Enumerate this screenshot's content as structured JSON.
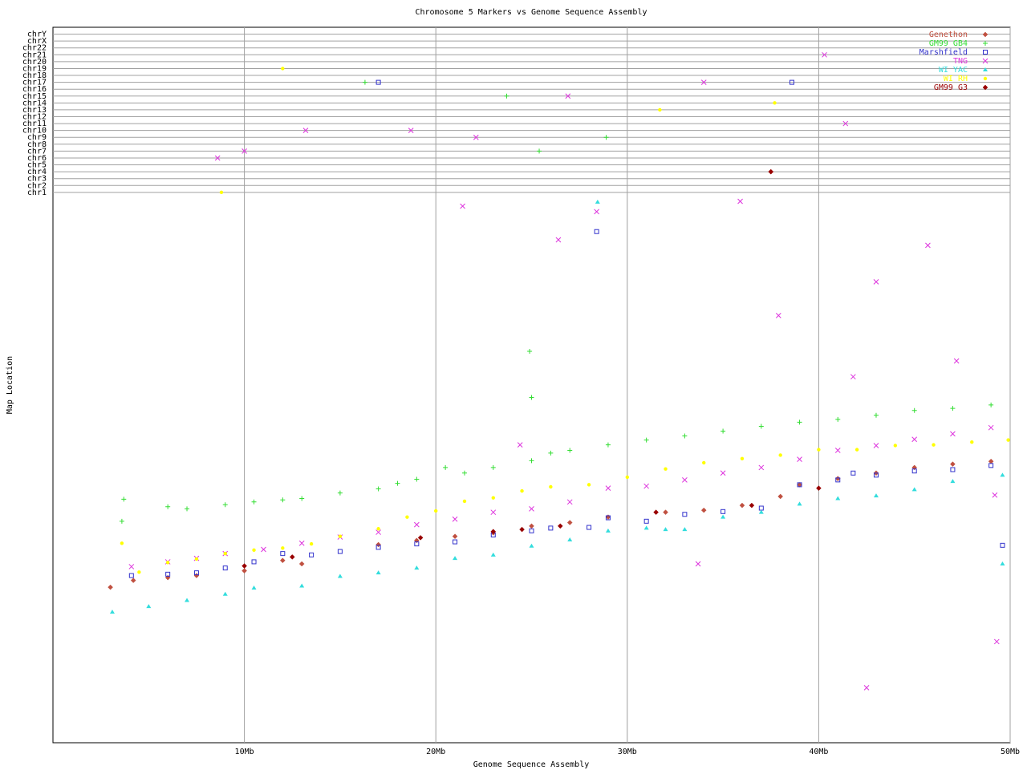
{
  "chart_data": {
    "type": "scatter",
    "title": "Chromosome 5 Markers vs Genome Sequence Assembly",
    "x_label": "Genome Sequence Assembly",
    "y_label": "Map Location",
    "xlim": [
      0,
      50
    ],
    "ylim": [
      0,
      104
    ],
    "xticks": [
      {
        "value": 10,
        "label": "10Mb"
      },
      {
        "value": 20,
        "label": "20Mb"
      },
      {
        "value": 30,
        "label": "30Mb"
      },
      {
        "value": 40,
        "label": "40Mb"
      },
      {
        "value": 50,
        "label": "50Mb"
      }
    ],
    "yticks": [
      {
        "value": 80,
        "label": "chr1"
      },
      {
        "value": 81,
        "label": "chr2"
      },
      {
        "value": 82,
        "label": "chr3"
      },
      {
        "value": 83,
        "label": "chr4"
      },
      {
        "value": 84,
        "label": "chr5"
      },
      {
        "value": 85,
        "label": "chr6"
      },
      {
        "value": 86,
        "label": "chr7"
      },
      {
        "value": 87,
        "label": "chr8"
      },
      {
        "value": 88,
        "label": "chr9"
      },
      {
        "value": 89,
        "label": "chr10"
      },
      {
        "value": 90,
        "label": "chr11"
      },
      {
        "value": 91,
        "label": "chr12"
      },
      {
        "value": 92,
        "label": "chr13"
      },
      {
        "value": 93,
        "label": "chr14"
      },
      {
        "value": 94,
        "label": "chr15"
      },
      {
        "value": 95,
        "label": "chr16"
      },
      {
        "value": 96,
        "label": "chr17"
      },
      {
        "value": 97,
        "label": "chr18"
      },
      {
        "value": 98,
        "label": "chr19"
      },
      {
        "value": 99,
        "label": "chr20"
      },
      {
        "value": 100,
        "label": "chr21"
      },
      {
        "value": 101,
        "label": "chr22"
      },
      {
        "value": 102,
        "label": "chrX"
      },
      {
        "value": 103,
        "label": "chrY"
      }
    ],
    "grid": true,
    "legend": "top-right",
    "series": [
      {
        "name": "Genethon",
        "color": "#c05040",
        "marker": "diamond",
        "x": [
          3.0,
          4.2,
          6,
          7.5,
          10,
          12,
          13,
          17,
          19,
          21,
          23,
          25,
          27,
          29,
          32,
          34,
          36,
          38,
          39,
          41,
          43,
          45,
          47,
          49,
          37.5
        ],
        "values": [
          22.6,
          23.6,
          24.0,
          24.3,
          25.0,
          26.5,
          26.0,
          28.8,
          29.4,
          30.0,
          30.5,
          31.5,
          32.0,
          32.8,
          33.5,
          33.8,
          34.5,
          35.8,
          37.5,
          38.4,
          39.2,
          40.0,
          40.5,
          40.9,
          83
        ]
      },
      {
        "name": "GM99 GB4",
        "color": "#33dd33",
        "marker": "plus",
        "x": [
          3.6,
          6,
          7,
          9,
          10.5,
          12,
          13,
          15,
          17,
          18,
          19,
          20.5,
          21.5,
          23,
          25,
          26,
          27,
          29,
          31,
          33,
          35,
          37,
          39,
          41,
          43,
          45,
          47,
          49,
          24.9,
          25.0,
          3.7,
          16.3,
          23.7,
          25.4,
          28.9
        ],
        "values": [
          32.2,
          34.3,
          34.0,
          34.6,
          35.0,
          35.3,
          35.5,
          36.3,
          36.9,
          37.7,
          38.3,
          40.0,
          39.2,
          40.0,
          41.0,
          42.1,
          42.5,
          43.3,
          44.0,
          44.6,
          45.3,
          46.0,
          46.6,
          47.0,
          47.6,
          48.3,
          48.6,
          49.1,
          56.9,
          50.2,
          35.4,
          96,
          94,
          86,
          88
        ]
      },
      {
        "name": "Marshfield",
        "color": "#3333cc",
        "marker": "square",
        "x": [
          4.1,
          6,
          7.5,
          9,
          10.5,
          12,
          13.5,
          15,
          17,
          19,
          21,
          23,
          25,
          26,
          28,
          29,
          31,
          33,
          35,
          37,
          39,
          41,
          43,
          45,
          47,
          49,
          28.4,
          38.6,
          17.0,
          49.6,
          41.8
        ],
        "values": [
          24.3,
          24.5,
          24.7,
          25.4,
          26.3,
          27.5,
          27.3,
          27.8,
          28.4,
          28.9,
          29.2,
          30.2,
          30.8,
          31.2,
          31.3,
          32.7,
          32.2,
          33.2,
          33.6,
          34.1,
          37.5,
          38.2,
          38.9,
          39.5,
          39.7,
          40.3,
          74.3,
          96,
          96,
          28.7,
          39.2
        ]
      },
      {
        "name": "TNG",
        "color": "#dd33dd",
        "marker": "cross",
        "x": [
          4.1,
          6,
          7.5,
          9,
          11,
          13,
          15,
          17,
          19,
          21,
          23,
          25,
          27,
          29,
          31,
          33,
          35,
          37,
          39,
          41,
          43,
          45,
          47,
          49,
          8.6,
          10.0,
          13.2,
          18.7,
          22.1,
          26.9,
          34.0,
          40.3,
          41.4,
          21.4,
          26.4,
          28.4,
          35.9,
          43.0,
          45.7,
          37.9,
          41.8,
          47.2,
          24.4,
          33.7,
          42.5,
          49.3,
          49.2
        ],
        "values": [
          25.6,
          26.3,
          26.8,
          27.5,
          28.1,
          29.0,
          29.9,
          30.6,
          31.7,
          32.5,
          33.5,
          34.0,
          35.0,
          37.0,
          37.3,
          38.2,
          39.2,
          40.0,
          41.2,
          42.5,
          43.2,
          44.1,
          44.9,
          45.8,
          85,
          86,
          89,
          89,
          88,
          94,
          96,
          100,
          90,
          78.0,
          73.1,
          77.2,
          78.7,
          67.0,
          72.3,
          62.1,
          53.2,
          55.5,
          43.3,
          26.0,
          8.0,
          14.7,
          36.0
        ]
      },
      {
        "name": "WI YAC",
        "color": "#33dddd",
        "marker": "triangle",
        "x": [
          3.1,
          5,
          7,
          9,
          10.5,
          13,
          15,
          17,
          19,
          21,
          23,
          25,
          27,
          29,
          31,
          33,
          35,
          37,
          39,
          41,
          43,
          45,
          47,
          49.6,
          28.45,
          49.6,
          32.0
        ],
        "values": [
          19.0,
          19.8,
          20.7,
          21.6,
          22.5,
          22.8,
          24.2,
          24.7,
          25.4,
          26.8,
          27.3,
          28.6,
          29.5,
          30.8,
          31.2,
          31.0,
          32.8,
          33.5,
          34.7,
          35.5,
          35.9,
          36.8,
          38.0,
          38.9,
          78.6,
          26.0,
          31.0
        ]
      },
      {
        "name": "WI RH",
        "color": "#ffff00",
        "marker": "circle",
        "x": [
          3.6,
          4.5,
          6,
          7.5,
          9,
          10.5,
          12,
          13.5,
          15,
          17,
          18.5,
          20,
          21.5,
          23,
          24.5,
          26,
          28,
          30,
          32,
          34,
          36,
          38,
          40,
          42,
          44,
          46,
          48,
          49.9,
          12.0,
          8.8,
          31.7,
          37.7
        ],
        "values": [
          29.0,
          24.8,
          26.2,
          26.7,
          27.5,
          28.0,
          28.3,
          28.9,
          30.0,
          31.1,
          32.8,
          33.7,
          35.1,
          35.6,
          36.6,
          37.2,
          37.5,
          38.6,
          39.8,
          40.7,
          41.3,
          41.8,
          42.6,
          42.6,
          43.2,
          43.3,
          43.7,
          44.0,
          98,
          80,
          92,
          93
        ]
      },
      {
        "name": "GM99 G3",
        "color": "#990000",
        "marker": "diamond",
        "x": [
          10,
          12.5,
          19.2,
          23,
          24.5,
          26.5,
          31.5,
          36.5,
          37.5,
          40
        ],
        "values": [
          25.7,
          27.0,
          29.8,
          30.7,
          31.0,
          31.5,
          33.5,
          34.5,
          83,
          37.0
        ]
      }
    ]
  }
}
